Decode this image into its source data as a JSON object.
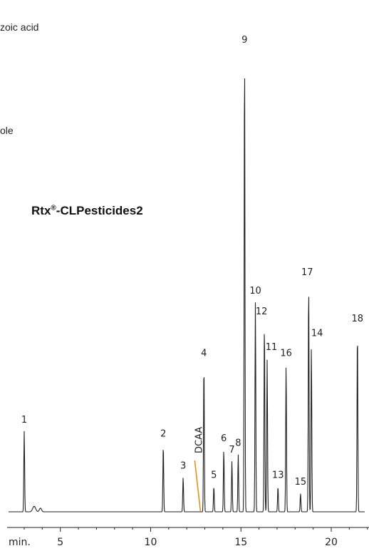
{
  "fragments": {
    "top": "zoic acid",
    "mid": "ole"
  },
  "title": {
    "main": "Rtx",
    "reg": "®",
    "rest": "-CLPesticides2"
  },
  "chart_data": {
    "type": "line",
    "title": "Rtx®-CLPesticides2",
    "xlabel": "min.",
    "ylabel": "",
    "xlim": [
      2.0,
      22.3
    ],
    "ylim": [
      0,
      100
    ],
    "xticks": [
      "5",
      "10",
      "15",
      "20"
    ],
    "xtick_values": [
      5,
      10,
      15,
      20
    ],
    "baseline_color": "#222222",
    "annotation_color": "#e8901e",
    "peaks": [
      {
        "label": "1",
        "x": 3.0,
        "h": 17.5
      },
      {
        "label": "2",
        "x": 10.7,
        "h": 14.5
      },
      {
        "label": "3",
        "x": 11.8,
        "h": 7.5
      },
      {
        "label": "4",
        "x": 12.95,
        "h": 32.0
      },
      {
        "label": "5",
        "x": 13.5,
        "h": 5.5
      },
      {
        "label": "6",
        "x": 14.05,
        "h": 13.5
      },
      {
        "label": "7",
        "x": 14.5,
        "h": 11.0
      },
      {
        "label": "8",
        "x": 14.85,
        "h": 12.5
      },
      {
        "label": "9",
        "x": 15.2,
        "h": 100.0
      },
      {
        "label": "10",
        "x": 15.8,
        "h": 45.5
      },
      {
        "label": "12",
        "x": 16.3,
        "h": 41.0
      },
      {
        "label": "11",
        "x": 16.45,
        "h": 33.0
      },
      {
        "label": "13",
        "x": 17.05,
        "h": 5.5
      },
      {
        "label": "16",
        "x": 17.5,
        "h": 32.0
      },
      {
        "label": "15",
        "x": 18.3,
        "h": 4.0
      },
      {
        "label": "17",
        "x": 18.75,
        "h": 49.5
      },
      {
        "label": "14",
        "x": 18.9,
        "h": 36.0
      },
      {
        "label": "18",
        "x": 21.45,
        "h": 39.5
      }
    ],
    "annotations": [
      {
        "label": "DCAA",
        "x": 12.6
      }
    ]
  }
}
